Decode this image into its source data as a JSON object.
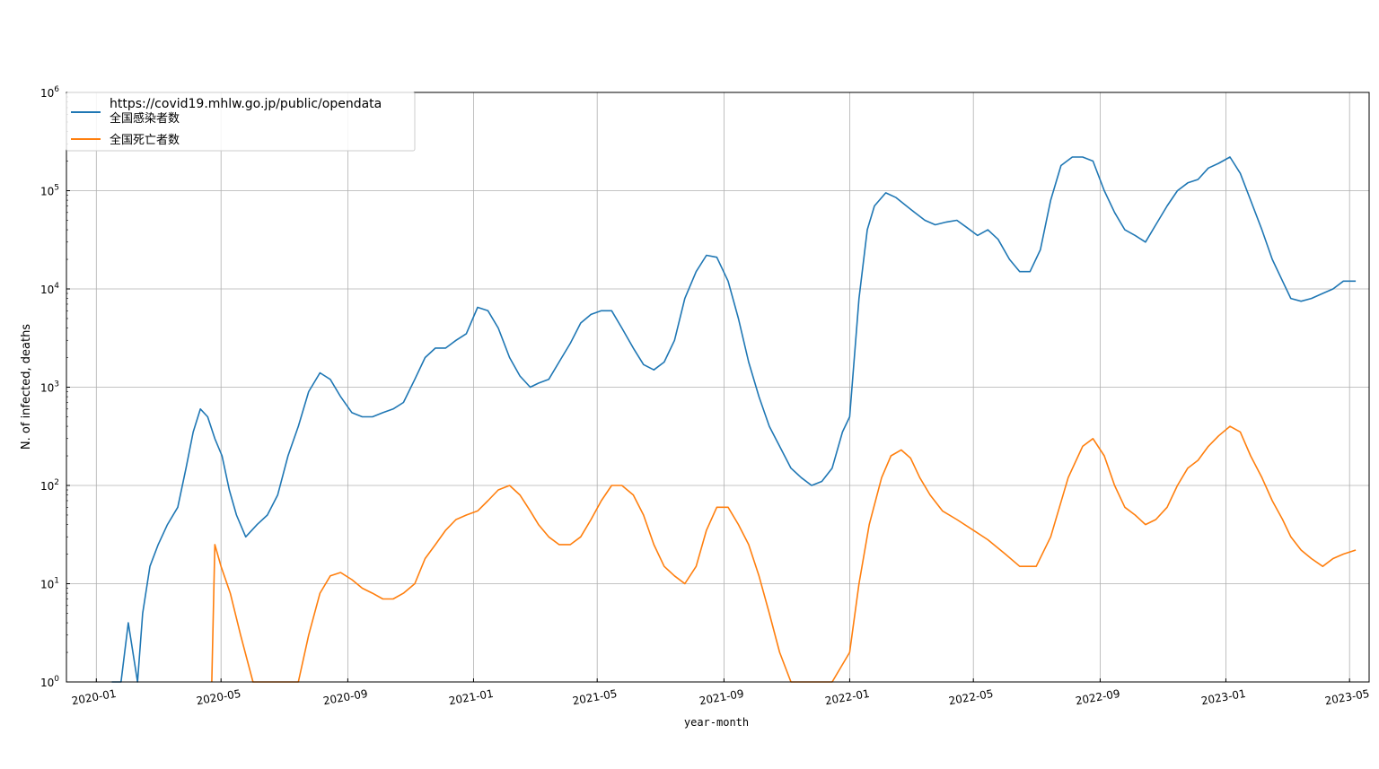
{
  "chart_data": {
    "type": "line",
    "title": "",
    "xlabel": "year-month",
    "ylabel": "N. of infected, deaths",
    "yscale": "log",
    "ylim": [
      1,
      1000000
    ],
    "xlim": [
      "2019-12-03",
      "2023-05-20"
    ],
    "grid": true,
    "legend": {
      "position": "top-left",
      "title": "https://covid19.mhlw.go.jp/public/opendata"
    },
    "xticks": [
      {
        "date": "2020-01-01",
        "label": "2020-01"
      },
      {
        "date": "2020-05-01",
        "label": "2020-05"
      },
      {
        "date": "2020-09-01",
        "label": "2020-09"
      },
      {
        "date": "2021-01-01",
        "label": "2021-01"
      },
      {
        "date": "2021-05-01",
        "label": "2021-05"
      },
      {
        "date": "2021-09-01",
        "label": "2021-09"
      },
      {
        "date": "2022-01-01",
        "label": "2022-01"
      },
      {
        "date": "2022-05-01",
        "label": "2022-05"
      },
      {
        "date": "2022-09-01",
        "label": "2022-09"
      },
      {
        "date": "2023-01-01",
        "label": "2023-01"
      },
      {
        "date": "2023-05-01",
        "label": "2023-05"
      }
    ],
    "yticks": [
      {
        "value": 1,
        "base": "10",
        "exp": "0"
      },
      {
        "value": 10,
        "base": "10",
        "exp": "1"
      },
      {
        "value": 100,
        "base": "10",
        "exp": "2"
      },
      {
        "value": 1000,
        "base": "10",
        "exp": "3"
      },
      {
        "value": 10000,
        "base": "10",
        "exp": "4"
      },
      {
        "value": 100000,
        "base": "10",
        "exp": "5"
      },
      {
        "value": 1000000,
        "base": "10",
        "exp": "6"
      }
    ],
    "series": [
      {
        "name": "全国感染者数",
        "color": "#1f77b4",
        "points": [
          [
            "2020-01-16",
            1
          ],
          [
            "2020-01-25",
            1
          ],
          [
            "2020-02-01",
            4
          ],
          [
            "2020-02-10",
            1
          ],
          [
            "2020-02-15",
            5
          ],
          [
            "2020-02-22",
            15
          ],
          [
            "2020-03-01",
            25
          ],
          [
            "2020-03-10",
            40
          ],
          [
            "2020-03-20",
            60
          ],
          [
            "2020-03-28",
            150
          ],
          [
            "2020-04-04",
            350
          ],
          [
            "2020-04-11",
            600
          ],
          [
            "2020-04-18",
            500
          ],
          [
            "2020-04-25",
            300
          ],
          [
            "2020-05-02",
            200
          ],
          [
            "2020-05-09",
            90
          ],
          [
            "2020-05-16",
            50
          ],
          [
            "2020-05-25",
            30
          ],
          [
            "2020-06-05",
            40
          ],
          [
            "2020-06-15",
            50
          ],
          [
            "2020-06-25",
            80
          ],
          [
            "2020-07-05",
            200
          ],
          [
            "2020-07-15",
            400
          ],
          [
            "2020-07-25",
            900
          ],
          [
            "2020-08-05",
            1400
          ],
          [
            "2020-08-15",
            1200
          ],
          [
            "2020-08-25",
            800
          ],
          [
            "2020-09-05",
            550
          ],
          [
            "2020-09-15",
            500
          ],
          [
            "2020-09-25",
            500
          ],
          [
            "2020-10-05",
            550
          ],
          [
            "2020-10-15",
            600
          ],
          [
            "2020-10-25",
            700
          ],
          [
            "2020-11-05",
            1200
          ],
          [
            "2020-11-15",
            2000
          ],
          [
            "2020-11-25",
            2500
          ],
          [
            "2020-12-05",
            2500
          ],
          [
            "2020-12-15",
            3000
          ],
          [
            "2020-12-25",
            3500
          ],
          [
            "2021-01-05",
            6500
          ],
          [
            "2021-01-15",
            6000
          ],
          [
            "2021-01-25",
            4000
          ],
          [
            "2021-02-05",
            2000
          ],
          [
            "2021-02-15",
            1300
          ],
          [
            "2021-02-25",
            1000
          ],
          [
            "2021-03-05",
            1100
          ],
          [
            "2021-03-15",
            1200
          ],
          [
            "2021-03-25",
            1800
          ],
          [
            "2021-04-05",
            2800
          ],
          [
            "2021-04-15",
            4500
          ],
          [
            "2021-04-25",
            5500
          ],
          [
            "2021-05-05",
            6000
          ],
          [
            "2021-05-15",
            6000
          ],
          [
            "2021-05-25",
            4000
          ],
          [
            "2021-06-05",
            2500
          ],
          [
            "2021-06-15",
            1700
          ],
          [
            "2021-06-25",
            1500
          ],
          [
            "2021-07-05",
            1800
          ],
          [
            "2021-07-15",
            3000
          ],
          [
            "2021-07-25",
            8000
          ],
          [
            "2021-08-05",
            15000
          ],
          [
            "2021-08-15",
            22000
          ],
          [
            "2021-08-25",
            21000
          ],
          [
            "2021-09-05",
            12000
          ],
          [
            "2021-09-15",
            5000
          ],
          [
            "2021-09-25",
            1800
          ],
          [
            "2021-10-05",
            800
          ],
          [
            "2021-10-15",
            400
          ],
          [
            "2021-10-25",
            250
          ],
          [
            "2021-11-05",
            150
          ],
          [
            "2021-11-15",
            120
          ],
          [
            "2021-11-25",
            100
          ],
          [
            "2021-12-05",
            110
          ],
          [
            "2021-12-15",
            150
          ],
          [
            "2021-12-25",
            350
          ],
          [
            "2022-01-01",
            500
          ],
          [
            "2022-01-10",
            8000
          ],
          [
            "2022-01-18",
            40000
          ],
          [
            "2022-01-25",
            70000
          ],
          [
            "2022-02-05",
            95000
          ],
          [
            "2022-02-15",
            85000
          ],
          [
            "2022-02-25",
            70000
          ],
          [
            "2022-03-05",
            60000
          ],
          [
            "2022-03-15",
            50000
          ],
          [
            "2022-03-25",
            45000
          ],
          [
            "2022-04-05",
            48000
          ],
          [
            "2022-04-15",
            50000
          ],
          [
            "2022-04-25",
            42000
          ],
          [
            "2022-05-05",
            35000
          ],
          [
            "2022-05-15",
            40000
          ],
          [
            "2022-05-25",
            32000
          ],
          [
            "2022-06-05",
            20000
          ],
          [
            "2022-06-15",
            15000
          ],
          [
            "2022-06-25",
            15000
          ],
          [
            "2022-07-05",
            25000
          ],
          [
            "2022-07-15",
            80000
          ],
          [
            "2022-07-25",
            180000
          ],
          [
            "2022-08-05",
            220000
          ],
          [
            "2022-08-15",
            220000
          ],
          [
            "2022-08-25",
            200000
          ],
          [
            "2022-09-05",
            100000
          ],
          [
            "2022-09-15",
            60000
          ],
          [
            "2022-09-25",
            40000
          ],
          [
            "2022-10-05",
            35000
          ],
          [
            "2022-10-15",
            30000
          ],
          [
            "2022-10-25",
            45000
          ],
          [
            "2022-11-05",
            70000
          ],
          [
            "2022-11-15",
            100000
          ],
          [
            "2022-11-25",
            120000
          ],
          [
            "2022-12-05",
            130000
          ],
          [
            "2022-12-15",
            170000
          ],
          [
            "2022-12-25",
            190000
          ],
          [
            "2023-01-05",
            220000
          ],
          [
            "2023-01-15",
            150000
          ],
          [
            "2023-01-25",
            80000
          ],
          [
            "2023-02-05",
            40000
          ],
          [
            "2023-02-15",
            20000
          ],
          [
            "2023-02-25",
            12000
          ],
          [
            "2023-03-05",
            8000
          ],
          [
            "2023-03-15",
            7500
          ],
          [
            "2023-03-25",
            8000
          ],
          [
            "2023-04-05",
            9000
          ],
          [
            "2023-04-15",
            10000
          ],
          [
            "2023-04-25",
            12000
          ],
          [
            "2023-05-07",
            12000
          ]
        ]
      },
      {
        "name": "全国死亡者数",
        "color": "#ff7f0e",
        "points": [
          [
            "2020-04-22",
            1
          ],
          [
            "2020-04-25",
            25
          ],
          [
            "2020-05-01",
            15
          ],
          [
            "2020-05-10",
            8
          ],
          [
            "2020-05-20",
            3
          ],
          [
            "2020-06-01",
            1
          ],
          [
            "2020-06-15",
            1
          ],
          [
            "2020-07-01",
            1
          ],
          [
            "2020-07-15",
            1
          ],
          [
            "2020-07-25",
            3
          ],
          [
            "2020-08-05",
            8
          ],
          [
            "2020-08-15",
            12
          ],
          [
            "2020-08-25",
            13
          ],
          [
            "2020-09-05",
            11
          ],
          [
            "2020-09-15",
            9
          ],
          [
            "2020-09-25",
            8
          ],
          [
            "2020-10-05",
            7
          ],
          [
            "2020-10-15",
            7
          ],
          [
            "2020-10-25",
            8
          ],
          [
            "2020-11-05",
            10
          ],
          [
            "2020-11-15",
            18
          ],
          [
            "2020-11-25",
            25
          ],
          [
            "2020-12-05",
            35
          ],
          [
            "2020-12-15",
            45
          ],
          [
            "2020-12-25",
            50
          ],
          [
            "2021-01-05",
            55
          ],
          [
            "2021-01-15",
            70
          ],
          [
            "2021-01-25",
            90
          ],
          [
            "2021-02-05",
            100
          ],
          [
            "2021-02-15",
            80
          ],
          [
            "2021-02-25",
            55
          ],
          [
            "2021-03-05",
            40
          ],
          [
            "2021-03-15",
            30
          ],
          [
            "2021-03-25",
            25
          ],
          [
            "2021-04-05",
            25
          ],
          [
            "2021-04-15",
            30
          ],
          [
            "2021-04-25",
            45
          ],
          [
            "2021-05-05",
            70
          ],
          [
            "2021-05-15",
            100
          ],
          [
            "2021-05-25",
            100
          ],
          [
            "2021-06-05",
            80
          ],
          [
            "2021-06-15",
            50
          ],
          [
            "2021-06-25",
            25
          ],
          [
            "2021-07-05",
            15
          ],
          [
            "2021-07-15",
            12
          ],
          [
            "2021-07-25",
            10
          ],
          [
            "2021-08-05",
            15
          ],
          [
            "2021-08-15",
            35
          ],
          [
            "2021-08-25",
            60
          ],
          [
            "2021-09-05",
            60
          ],
          [
            "2021-09-15",
            40
          ],
          [
            "2021-09-25",
            25
          ],
          [
            "2021-10-05",
            12
          ],
          [
            "2021-10-15",
            5
          ],
          [
            "2021-10-25",
            2
          ],
          [
            "2021-11-05",
            1
          ],
          [
            "2021-11-15",
            1
          ],
          [
            "2021-11-25",
            1
          ],
          [
            "2021-12-05",
            1
          ],
          [
            "2021-12-15",
            1
          ],
          [
            "2022-01-01",
            2
          ],
          [
            "2022-01-10",
            10
          ],
          [
            "2022-01-20",
            40
          ],
          [
            "2022-02-01",
            120
          ],
          [
            "2022-02-10",
            200
          ],
          [
            "2022-02-20",
            230
          ],
          [
            "2022-03-01",
            190
          ],
          [
            "2022-03-10",
            120
          ],
          [
            "2022-03-20",
            80
          ],
          [
            "2022-04-01",
            55
          ],
          [
            "2022-04-15",
            45
          ],
          [
            "2022-05-01",
            35
          ],
          [
            "2022-05-15",
            28
          ],
          [
            "2022-06-01",
            20
          ],
          [
            "2022-06-15",
            15
          ],
          [
            "2022-07-01",
            15
          ],
          [
            "2022-07-15",
            30
          ],
          [
            "2022-08-01",
            120
          ],
          [
            "2022-08-15",
            250
          ],
          [
            "2022-08-25",
            300
          ],
          [
            "2022-09-05",
            200
          ],
          [
            "2022-09-15",
            100
          ],
          [
            "2022-09-25",
            60
          ],
          [
            "2022-10-05",
            50
          ],
          [
            "2022-10-15",
            40
          ],
          [
            "2022-10-25",
            45
          ],
          [
            "2022-11-05",
            60
          ],
          [
            "2022-11-15",
            100
          ],
          [
            "2022-11-25",
            150
          ],
          [
            "2022-12-05",
            180
          ],
          [
            "2022-12-15",
            250
          ],
          [
            "2022-12-25",
            320
          ],
          [
            "2023-01-05",
            400
          ],
          [
            "2023-01-15",
            350
          ],
          [
            "2023-01-25",
            200
          ],
          [
            "2023-02-05",
            120
          ],
          [
            "2023-02-15",
            70
          ],
          [
            "2023-02-25",
            45
          ],
          [
            "2023-03-05",
            30
          ],
          [
            "2023-03-15",
            22
          ],
          [
            "2023-03-25",
            18
          ],
          [
            "2023-04-05",
            15
          ],
          [
            "2023-04-15",
            18
          ],
          [
            "2023-04-25",
            20
          ],
          [
            "2023-05-07",
            22
          ]
        ]
      }
    ]
  }
}
